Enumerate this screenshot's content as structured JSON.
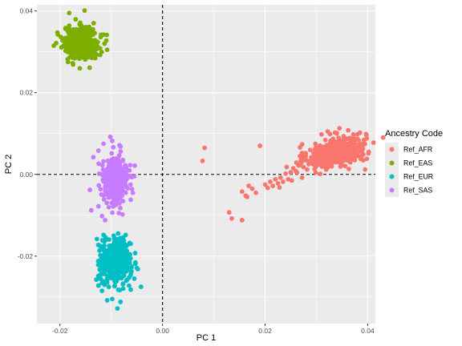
{
  "chart_data": {
    "type": "scatter",
    "title": "",
    "xlabel": "PC 1",
    "ylabel": "PC 2",
    "xlim": [
      -0.0245,
      0.0415
    ],
    "ylim": [
      -0.0365,
      0.0415
    ],
    "xticks": [
      -0.02,
      0.0,
      0.02,
      0.04
    ],
    "xtick_labels": [
      "-0.02",
      "0.00",
      "0.02",
      "0.04"
    ],
    "yticks": [
      -0.02,
      0.0,
      0.02,
      0.04
    ],
    "ytick_labels": [
      "-0.02",
      "0.00",
      "0.02",
      "0.04"
    ],
    "grid": true,
    "reference_lines": {
      "x": 0.0,
      "y": 0.0,
      "style": "dashed"
    },
    "legend": {
      "title": "Ancestry Code",
      "position": "right"
    },
    "series": [
      {
        "name": "Ref_AFR",
        "color": "#F8766D",
        "center": [
          0.034,
          0.0055
        ],
        "spread": [
          0.0028,
          0.0019
        ],
        "n": 420,
        "points": [
          [
            0.0082,
            0.0065
          ],
          [
            0.0078,
            0.0033
          ],
          [
            0.013,
            -0.0093
          ],
          [
            0.0135,
            -0.0108
          ],
          [
            0.0155,
            -0.0112
          ],
          [
            0.0155,
            -0.0042
          ],
          [
            0.0162,
            -0.0052
          ],
          [
            0.0165,
            -0.0055
          ],
          [
            0.0168,
            -0.0028
          ],
          [
            0.0175,
            -0.0035
          ],
          [
            0.0182,
            -0.0045
          ],
          [
            0.019,
            0.007
          ],
          [
            0.02,
            -0.0025
          ],
          [
            0.0205,
            -0.0033
          ],
          [
            0.021,
            -0.0018
          ],
          [
            0.0215,
            -0.0028
          ],
          [
            0.022,
            -0.0012
          ],
          [
            0.0225,
            -0.0022
          ],
          [
            0.023,
            -0.0008
          ],
          [
            0.0235,
            -0.0018
          ],
          [
            0.024,
            0.0002
          ],
          [
            0.0245,
            -0.0012
          ],
          [
            0.025,
            0.0005
          ],
          [
            0.0255,
            0.0015
          ],
          [
            0.026,
            0.0008
          ],
          [
            0.0265,
            0.0022
          ],
          [
            0.027,
            0.0028
          ],
          [
            0.0275,
            0.0018
          ],
          [
            0.028,
            0.0035
          ],
          [
            0.0285,
            0.0025
          ],
          [
            0.029,
            0.0042
          ],
          [
            0.0295,
            0.0032
          ],
          [
            0.0252,
            -0.0015
          ],
          [
            0.0262,
            0.0005
          ],
          [
            0.0272,
            -0.0008
          ],
          [
            0.0282,
            0.0012
          ],
          [
            0.0228,
            -0.0032
          ],
          [
            0.0242,
            0.0018
          ],
          [
            0.0268,
            0.0045
          ],
          [
            0.0288,
            0.006
          ],
          [
            0.0298,
            0.0075
          ],
          [
            0.0322,
            0.0105
          ],
          [
            0.0345,
            0.0113
          ],
          [
            0.0362,
            0.0108
          ],
          [
            0.038,
            0.0098
          ],
          [
            0.0395,
            0.0012
          ],
          [
            0.0402,
            0.0055
          ],
          [
            0.0385,
            0.0102
          ]
        ]
      },
      {
        "name": "Ref_EAS",
        "color": "#7CAE00",
        "center": [
          -0.0158,
          0.0322
        ],
        "spread": [
          0.0017,
          0.0019
        ],
        "n": 420,
        "points": [
          [
            -0.0182,
            0.0395
          ],
          [
            -0.0152,
            0.0401
          ],
          [
            -0.0185,
            0.0282
          ],
          [
            -0.0142,
            0.0261
          ],
          [
            -0.0195,
            0.0328
          ],
          [
            -0.0212,
            0.0315
          ],
          [
            -0.0115,
            0.0342
          ],
          [
            -0.0132,
            0.0296
          ],
          [
            -0.0175,
            0.0272
          ],
          [
            -0.0205,
            0.0347
          ]
        ]
      },
      {
        "name": "Ref_EUR",
        "color": "#00BFC4",
        "center": [
          -0.0092,
          -0.0215
        ],
        "spread": [
          0.0015,
          0.0025
        ],
        "n": 480,
        "points": [
          [
            -0.0125,
            -0.0272
          ],
          [
            -0.0118,
            -0.0285
          ],
          [
            -0.0098,
            -0.0305
          ],
          [
            -0.0088,
            -0.0328
          ],
          [
            -0.0082,
            -0.0312
          ],
          [
            -0.0062,
            -0.0282
          ],
          [
            -0.0055,
            -0.0255
          ],
          [
            -0.0042,
            -0.0275
          ],
          [
            -0.0128,
            -0.0158
          ],
          [
            -0.0115,
            -0.0148
          ],
          [
            -0.0072,
            -0.0148
          ],
          [
            -0.0108,
            -0.0308
          ]
        ]
      },
      {
        "name": "Ref_SAS",
        "color": "#C77CFF",
        "center": [
          -0.0092,
          -0.0015
        ],
        "spread": [
          0.0012,
          0.0026
        ],
        "n": 420,
        "points": [
          [
            -0.0115,
            0.0075
          ],
          [
            -0.0098,
            0.0082
          ],
          [
            -0.0082,
            0.0068
          ],
          [
            -0.0125,
            0.0058
          ],
          [
            -0.0135,
            0.0042
          ],
          [
            -0.0125,
            -0.0078
          ],
          [
            -0.0118,
            -0.0102
          ],
          [
            -0.0112,
            -0.0112
          ],
          [
            -0.0058,
            -0.0045
          ],
          [
            -0.0062,
            -0.0062
          ],
          [
            -0.0078,
            -0.0098
          ],
          [
            -0.0102,
            0.0092
          ]
        ]
      }
    ]
  }
}
